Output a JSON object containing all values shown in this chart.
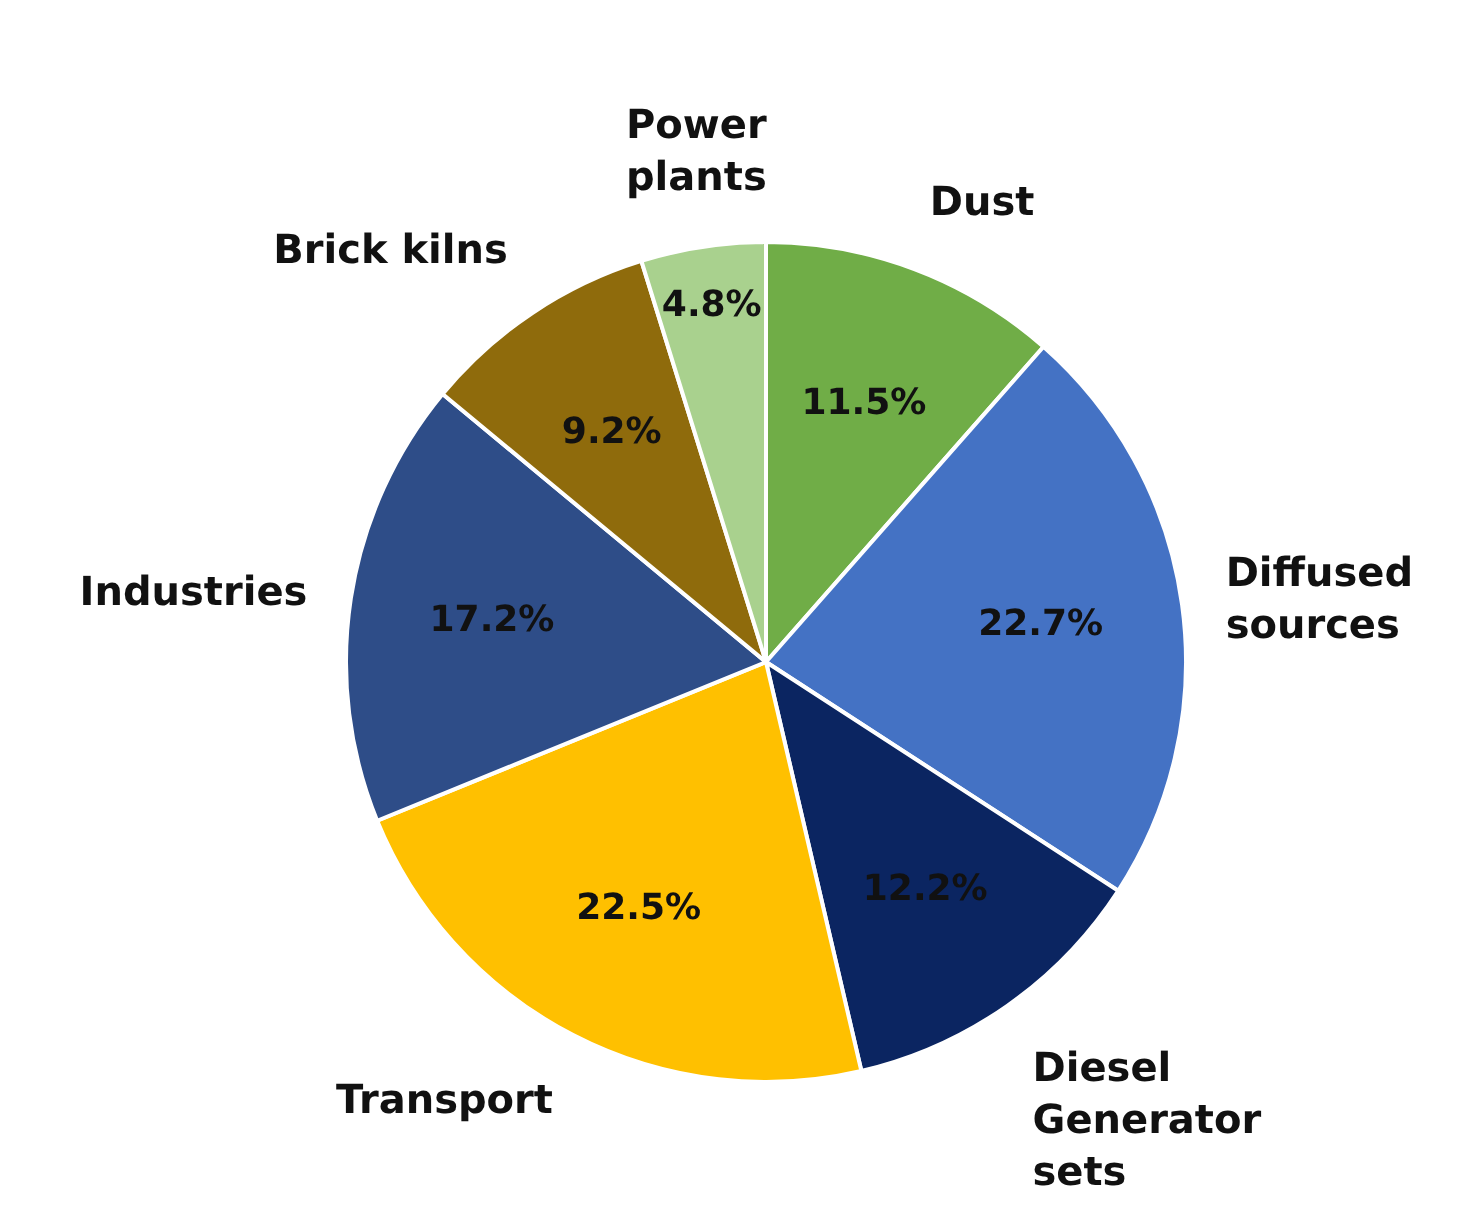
{
  "chart_data": {
    "type": "pie",
    "categories": [
      "Dust",
      "Diffused sources",
      "Diesel Generator sets",
      "Transport",
      "Industries",
      "Brick kilns",
      "Power plants"
    ],
    "values": [
      11.5,
      22.7,
      12.2,
      22.5,
      17.2,
      9.2,
      4.8
    ],
    "value_labels": [
      "11.5%",
      "22.7%",
      "12.2%",
      "22.5%",
      "17.2%",
      "9.2%",
      "4.8%"
    ],
    "colors": [
      "#70ad47",
      "#4472c4",
      "#0b2561",
      "#ffc000",
      "#2e4d88",
      "#8f6b0c",
      "#a9d18e"
    ],
    "legend": false
  }
}
